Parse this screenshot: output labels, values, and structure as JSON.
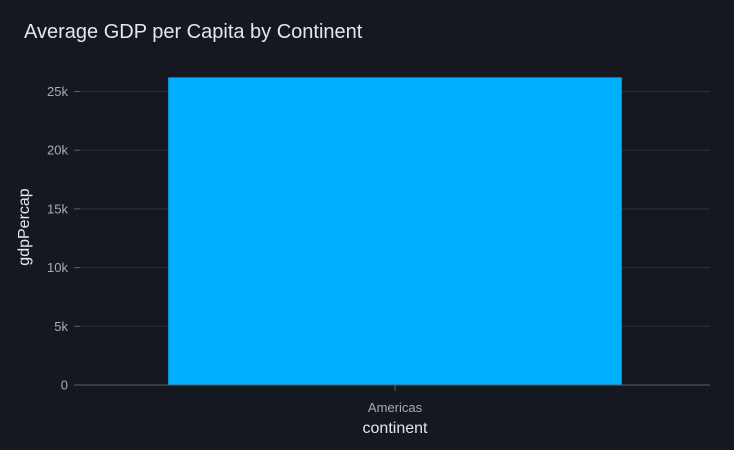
{
  "colors": {
    "background": "#161821",
    "grid": "#2c2f3a",
    "zero_line": "#5c5f6a",
    "bar": "#00b0ff",
    "text": "#e6e6e6",
    "tick_text": "#a9abb3"
  },
  "chart_data": {
    "type": "bar",
    "title": "Average GDP per Capita by Continent",
    "xlabel": "continent",
    "ylabel": "gdpPercap",
    "categories": [
      "Americas"
    ],
    "values": [
      26200
    ],
    "ylim": [
      0,
      27000
    ],
    "yticks": [
      {
        "value": 0,
        "label": "0"
      },
      {
        "value": 5000,
        "label": "5k"
      },
      {
        "value": 10000,
        "label": "10k"
      },
      {
        "value": 15000,
        "label": "15k"
      },
      {
        "value": 20000,
        "label": "20k"
      },
      {
        "value": 25000,
        "label": "25k"
      }
    ],
    "grid": true,
    "legend": "none"
  }
}
